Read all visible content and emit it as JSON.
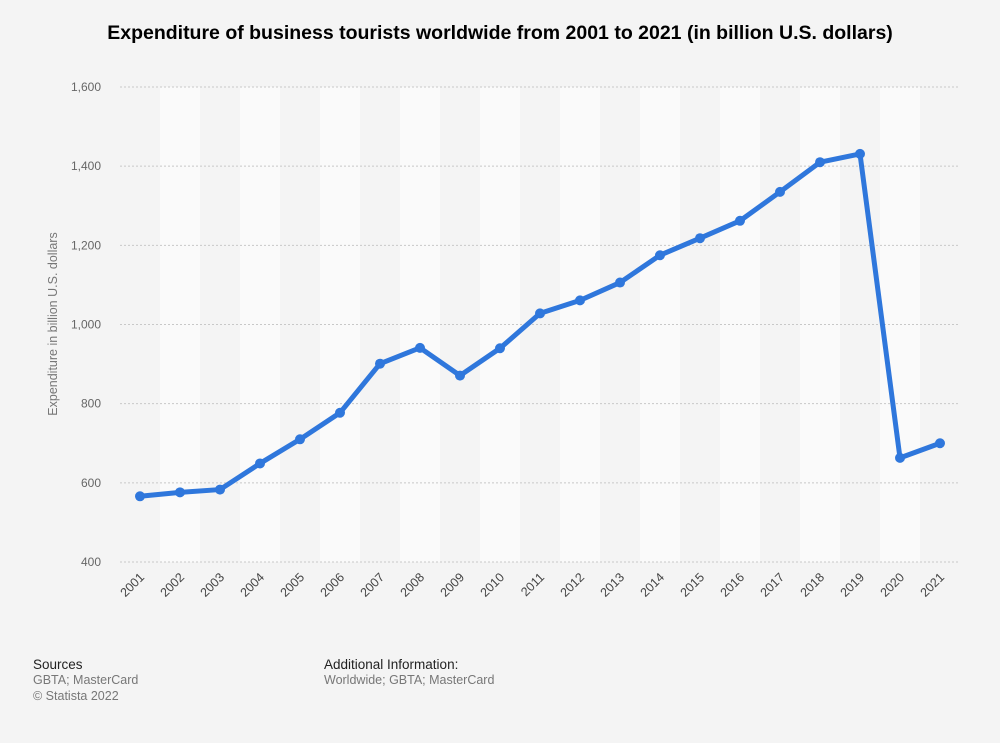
{
  "chart_data": {
    "type": "line",
    "title": "Expenditure of business tourists worldwide from 2001 to 2021 (in billion U.S. dollars)",
    "xlabel": "",
    "ylabel": "Expenditure in billion U.S. dollars",
    "categories": [
      "2001",
      "2002",
      "2003",
      "2004",
      "2005",
      "2006",
      "2007",
      "2008",
      "2009",
      "2010",
      "2011",
      "2012",
      "2013",
      "2014",
      "2015",
      "2016",
      "2017",
      "2018",
      "2019",
      "2020",
      "2021"
    ],
    "series": [
      {
        "name": "Expenditure",
        "values": [
          566,
          576,
          583,
          649,
          710,
          777,
          901,
          941,
          871,
          940,
          1028,
          1061,
          1106,
          1175,
          1218,
          1262,
          1335,
          1410,
          1431,
          663,
          700
        ]
      }
    ],
    "ylim": [
      400,
      1600
    ],
    "yticks": [
      400,
      600,
      800,
      1000,
      1200,
      1400,
      1600
    ],
    "ytick_labels": [
      "400",
      "600",
      "800",
      "1,000",
      "1,200",
      "1,400",
      "1,600"
    ],
    "line_color": "#2f77dc",
    "grid": true
  },
  "footer": {
    "sources_heading": "Sources",
    "sources_line1": "GBTA; MasterCard",
    "sources_line2": "© Statista 2022",
    "additional_heading": "Additional Information:",
    "additional_text": "Worldwide; GBTA; MasterCard"
  }
}
